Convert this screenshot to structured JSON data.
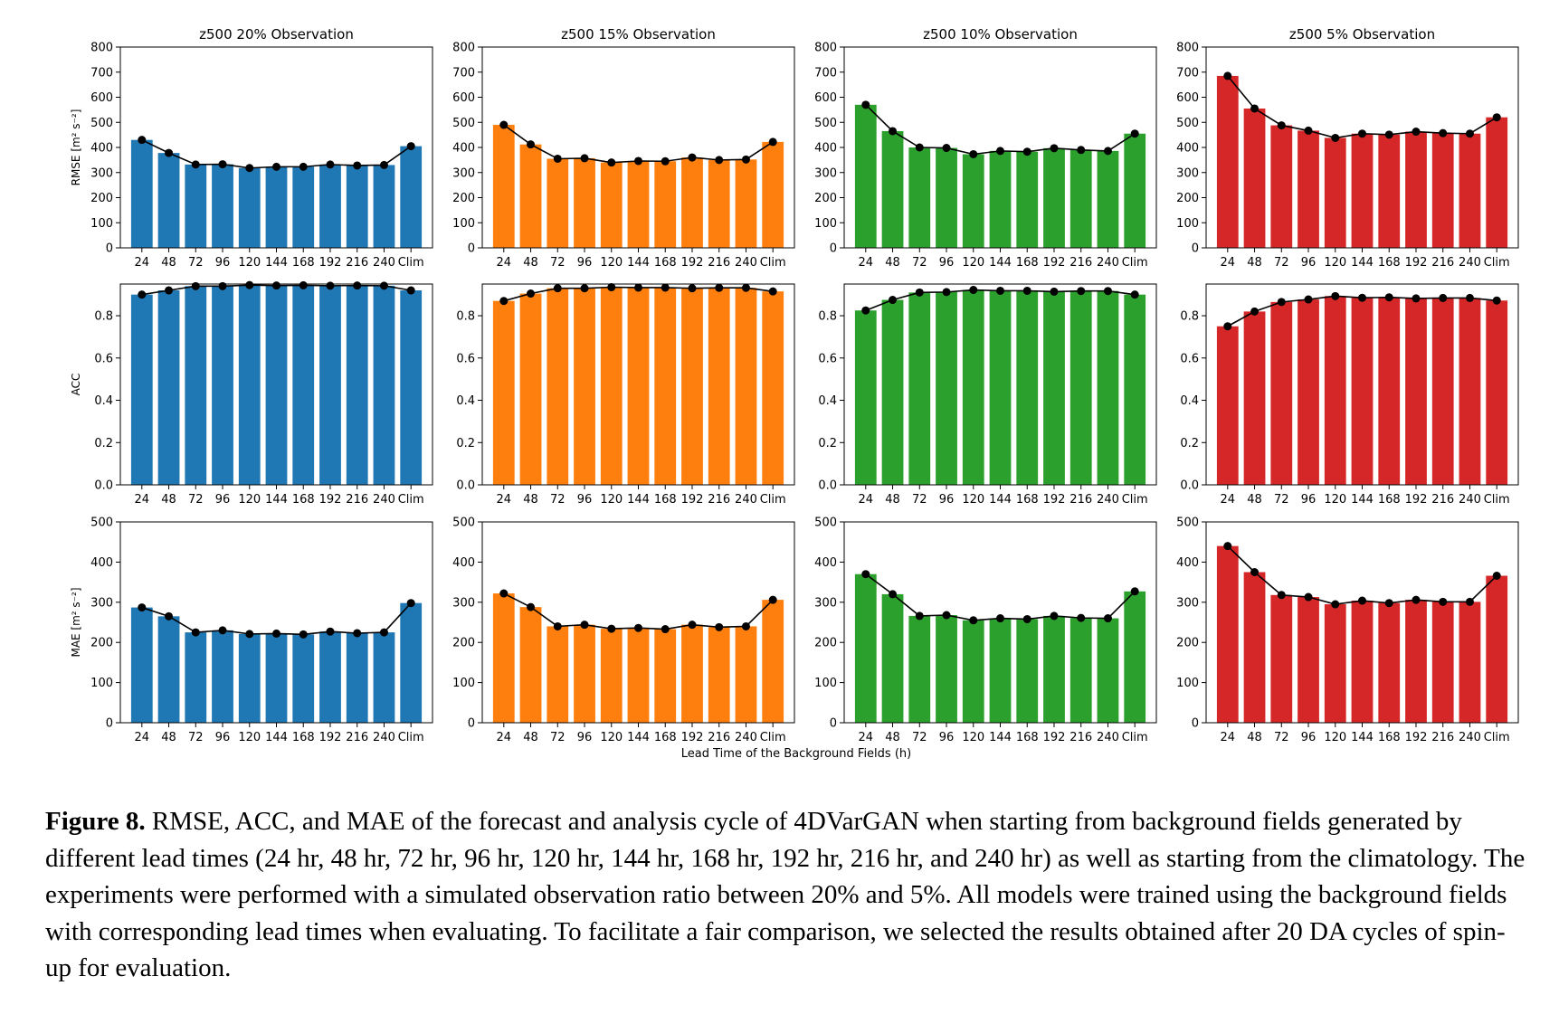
{
  "categories": [
    "24",
    "48",
    "72",
    "96",
    "120",
    "144",
    "168",
    "192",
    "216",
    "240",
    "Clim"
  ],
  "xlabel": "Lead Time of the Background Fields (h)",
  "columns": [
    {
      "title": "z500 20% Observation",
      "color": "#1f77b4"
    },
    {
      "title": "z500 15% Observation",
      "color": "#ff7f0e"
    },
    {
      "title": "z500 10% Observation",
      "color": "#2ca02c"
    },
    {
      "title": "z500 5% Observation",
      "color": "#d62728"
    }
  ],
  "rows": [
    {
      "metric": "RMSE",
      "ylabel": "RMSE [m² s⁻²]",
      "ylim": [
        0,
        800
      ],
      "yticks": [
        "0",
        "100",
        "200",
        "300",
        "400",
        "500",
        "600",
        "700",
        "800"
      ]
    },
    {
      "metric": "ACC",
      "ylabel": "ACC",
      "ylim": [
        0,
        0.95
      ],
      "yticks": [
        "0.0",
        "0.2",
        "0.4",
        "0.6",
        "0.8"
      ]
    },
    {
      "metric": "MAE",
      "ylabel": "MAE [m² s⁻²]",
      "ylim": [
        0,
        500
      ],
      "yticks": [
        "0",
        "100",
        "200",
        "300",
        "400",
        "500"
      ]
    }
  ],
  "chart_data": [
    {
      "type": "bar",
      "row": 0,
      "col": 0,
      "title": "z500 20% Observation",
      "ylabel": "RMSE [m² s⁻²]",
      "xlabel": "",
      "ylim": [
        0,
        800
      ],
      "categories": [
        "24",
        "48",
        "72",
        "96",
        "120",
        "144",
        "168",
        "192",
        "216",
        "240",
        "Clim"
      ],
      "values": [
        430,
        378,
        332,
        333,
        318,
        323,
        323,
        332,
        328,
        330,
        405
      ]
    },
    {
      "type": "bar",
      "row": 0,
      "col": 1,
      "title": "z500 15% Observation",
      "ylabel": "",
      "xlabel": "",
      "ylim": [
        0,
        800
      ],
      "categories": [
        "24",
        "48",
        "72",
        "96",
        "120",
        "144",
        "168",
        "192",
        "216",
        "240",
        "Clim"
      ],
      "values": [
        490,
        412,
        355,
        357,
        340,
        346,
        345,
        360,
        350,
        352,
        422
      ]
    },
    {
      "type": "bar",
      "row": 0,
      "col": 2,
      "title": "z500 10% Observation",
      "ylabel": "",
      "xlabel": "",
      "ylim": [
        0,
        800
      ],
      "categories": [
        "24",
        "48",
        "72",
        "96",
        "120",
        "144",
        "168",
        "192",
        "216",
        "240",
        "Clim"
      ],
      "values": [
        570,
        465,
        400,
        398,
        373,
        386,
        383,
        397,
        390,
        386,
        455
      ]
    },
    {
      "type": "bar",
      "row": 0,
      "col": 3,
      "title": "z500 5% Observation",
      "ylabel": "",
      "xlabel": "",
      "ylim": [
        0,
        800
      ],
      "categories": [
        "24",
        "48",
        "72",
        "96",
        "120",
        "144",
        "168",
        "192",
        "216",
        "240",
        "Clim"
      ],
      "values": [
        685,
        555,
        488,
        467,
        438,
        455,
        451,
        463,
        457,
        455,
        520
      ]
    },
    {
      "type": "bar",
      "row": 1,
      "col": 0,
      "title": "",
      "ylabel": "ACC",
      "xlabel": "",
      "ylim": [
        0,
        0.95
      ],
      "categories": [
        "24",
        "48",
        "72",
        "96",
        "120",
        "144",
        "168",
        "192",
        "216",
        "240",
        "Clim"
      ],
      "values": [
        0.9,
        0.92,
        0.94,
        0.94,
        0.945,
        0.943,
        0.944,
        0.942,
        0.943,
        0.942,
        0.92
      ]
    },
    {
      "type": "bar",
      "row": 1,
      "col": 1,
      "title": "",
      "ylabel": "",
      "xlabel": "",
      "ylim": [
        0,
        0.95
      ],
      "categories": [
        "24",
        "48",
        "72",
        "96",
        "120",
        "144",
        "168",
        "192",
        "216",
        "240",
        "Clim"
      ],
      "values": [
        0.87,
        0.905,
        0.93,
        0.93,
        0.935,
        0.933,
        0.933,
        0.93,
        0.932,
        0.932,
        0.915
      ]
    },
    {
      "type": "bar",
      "row": 1,
      "col": 2,
      "title": "",
      "ylabel": "",
      "xlabel": "",
      "ylim": [
        0,
        0.95
      ],
      "categories": [
        "24",
        "48",
        "72",
        "96",
        "120",
        "144",
        "168",
        "192",
        "216",
        "240",
        "Clim"
      ],
      "values": [
        0.825,
        0.875,
        0.91,
        0.912,
        0.922,
        0.918,
        0.918,
        0.914,
        0.917,
        0.917,
        0.9
      ]
    },
    {
      "type": "bar",
      "row": 1,
      "col": 3,
      "title": "",
      "ylabel": "",
      "xlabel": "",
      "ylim": [
        0,
        0.95
      ],
      "categories": [
        "24",
        "48",
        "72",
        "96",
        "120",
        "144",
        "168",
        "192",
        "216",
        "240",
        "Clim"
      ],
      "values": [
        0.75,
        0.82,
        0.865,
        0.877,
        0.893,
        0.885,
        0.887,
        0.882,
        0.884,
        0.884,
        0.872
      ]
    },
    {
      "type": "bar",
      "row": 2,
      "col": 0,
      "title": "",
      "ylabel": "MAE [m² s⁻²]",
      "xlabel": "Lead Time of the Background Fields (h)",
      "ylim": [
        0,
        500
      ],
      "categories": [
        "24",
        "48",
        "72",
        "96",
        "120",
        "144",
        "168",
        "192",
        "216",
        "240",
        "Clim"
      ],
      "values": [
        287,
        265,
        225,
        230,
        221,
        222,
        220,
        227,
        223,
        225,
        298
      ]
    },
    {
      "type": "bar",
      "row": 2,
      "col": 1,
      "title": "",
      "ylabel": "",
      "xlabel": "Lead Time of the Background Fields (h)",
      "ylim": [
        0,
        500
      ],
      "categories": [
        "24",
        "48",
        "72",
        "96",
        "120",
        "144",
        "168",
        "192",
        "216",
        "240",
        "Clim"
      ],
      "values": [
        322,
        288,
        240,
        244,
        234,
        236,
        233,
        244,
        238,
        240,
        306
      ]
    },
    {
      "type": "bar",
      "row": 2,
      "col": 2,
      "title": "",
      "ylabel": "",
      "xlabel": "Lead Time of the Background Fields (h)",
      "ylim": [
        0,
        500
      ],
      "categories": [
        "24",
        "48",
        "72",
        "96",
        "120",
        "144",
        "168",
        "192",
        "216",
        "240",
        "Clim"
      ],
      "values": [
        370,
        320,
        266,
        268,
        255,
        260,
        258,
        266,
        261,
        260,
        327
      ]
    },
    {
      "type": "bar",
      "row": 2,
      "col": 3,
      "title": "",
      "ylabel": "",
      "xlabel": "Lead Time of the Background Fields (h)",
      "ylim": [
        0,
        500
      ],
      "categories": [
        "24",
        "48",
        "72",
        "96",
        "120",
        "144",
        "168",
        "192",
        "216",
        "240",
        "Clim"
      ],
      "values": [
        440,
        375,
        318,
        313,
        295,
        304,
        298,
        306,
        301,
        301,
        366
      ]
    }
  ],
  "caption": {
    "label": "Figure 8.",
    "text": "RMSE, ACC, and MAE of the forecast and analysis cycle of 4DVarGAN when starting from background fields generated by different lead times (24 hr, 48 hr, 72 hr, 96 hr, 120 hr, 144 hr, 168 hr, 192 hr, 216 hr, and 240 hr) as well as starting from the climatology. The experiments were performed with a simulated observation ratio between 20% and 5%. All models were trained using the background fields with corresponding lead times when evaluating. To facilitate a fair comparison, we selected the results obtained after 20 DA cycles of spin-up for evaluation."
  }
}
